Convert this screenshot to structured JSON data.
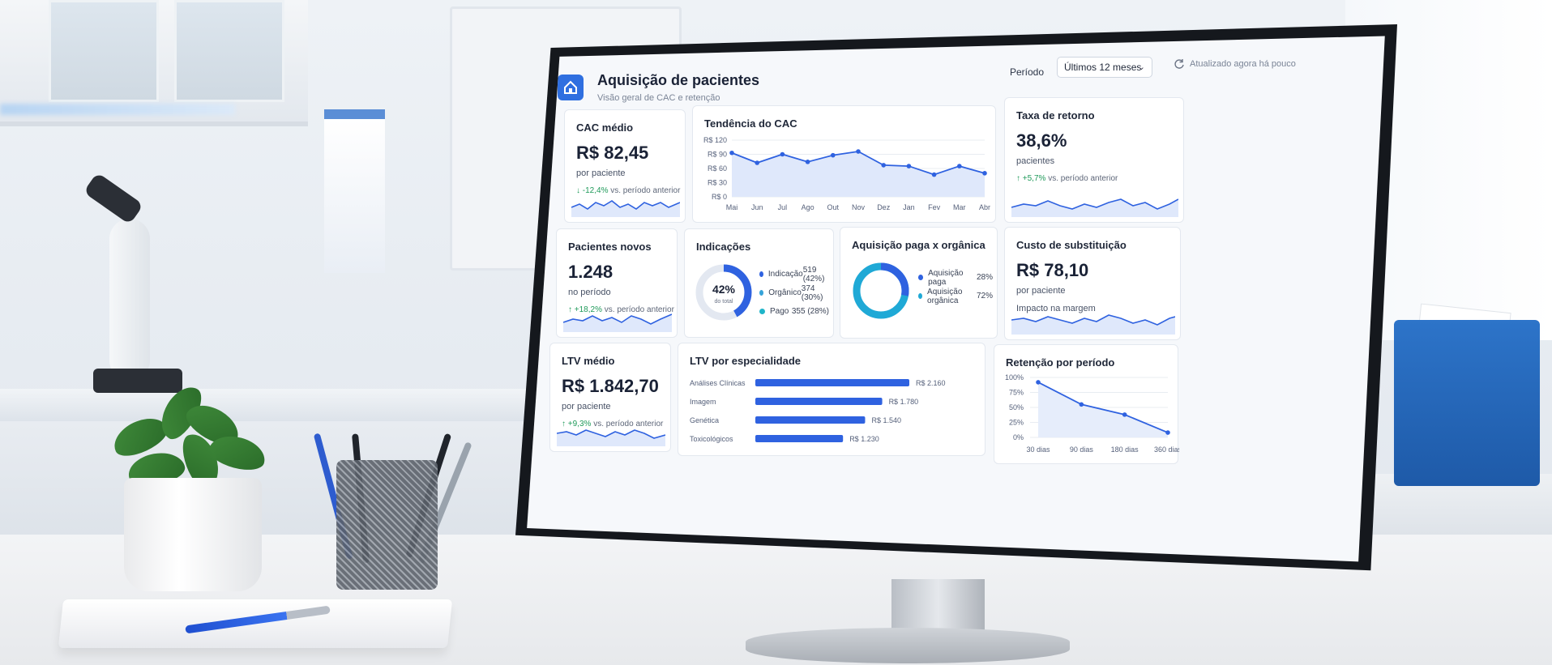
{
  "header": {
    "title": "Aquisição de pacientes",
    "subtitle": "Visão geral de CAC e retenção",
    "period_label": "Período",
    "period_value": "Últimos 12 meses",
    "updated": "Atualizado agora há pouco"
  },
  "cards": {
    "cac": {
      "title": "CAC médio",
      "value": "R$ 82,45",
      "unit": "por paciente",
      "delta": "-12,4%",
      "delta_suffix": "vs. período anterior"
    },
    "return_rate": {
      "title": "Taxa de retorno",
      "value": "38,6%",
      "unit": "pacientes",
      "delta": "+5,7%",
      "delta_suffix": "vs. período anterior"
    },
    "new_patients": {
      "title": "Pacientes novos",
      "value": "1.248",
      "unit": "no período",
      "delta": "+18,2%",
      "delta_suffix": "vs. período anterior"
    },
    "replacement": {
      "title": "Custo de substituição",
      "value": "R$ 78,10",
      "unit": "por paciente",
      "note": "Impacto na margem"
    },
    "ltv": {
      "title": "LTV médio",
      "value": "R$ 1.842,70",
      "unit": "por paciente",
      "delta": "+9,3%",
      "delta_suffix": "vs. período anterior"
    },
    "referrals": {
      "title": "Indicações",
      "center_value": "42%",
      "center_label": "do total",
      "items": [
        {
          "label": "Indicação",
          "value": "519 (42%)",
          "color": "#2f62e0"
        },
        {
          "label": "Orgânico",
          "value": "374 (30%)",
          "color": "#36a3d9"
        },
        {
          "label": "Pago",
          "value": "355 (28%)",
          "color": "#1fb5c9"
        }
      ]
    },
    "paid_organic": {
      "title": "Aquisição paga x orgânica",
      "items": [
        {
          "label": "Aquisição paga",
          "value": "28%",
          "color": "#2f62e0"
        },
        {
          "label": "Aquisição orgânica",
          "value": "72%",
          "color": "#1fa9d6"
        }
      ]
    }
  },
  "chart_data": [
    {
      "type": "line",
      "title": "Tendência do CAC",
      "categories": [
        "Mai",
        "Jun",
        "Jul",
        "Ago",
        "Out",
        "Nov",
        "Dez",
        "Jan",
        "Fev",
        "Mar",
        "Abr"
      ],
      "values": [
        93,
        72,
        90,
        74,
        88,
        96,
        67,
        65,
        47,
        65,
        50
      ],
      "yticks": [
        "R$ 120",
        "R$ 90",
        "R$ 60",
        "R$ 30",
        "R$ 0"
      ],
      "ylim": [
        0,
        120
      ]
    },
    {
      "type": "bar",
      "title": "LTV por especialidade",
      "categories": [
        "Análises Clínicas",
        "Imagem",
        "Genética",
        "Toxicológicos"
      ],
      "values": [
        2160,
        1780,
        1540,
        1230
      ],
      "labels": [
        "R$ 2.160",
        "R$ 1.780",
        "R$ 1.540",
        "R$ 1.230"
      ]
    },
    {
      "type": "line",
      "title": "Retenção por período",
      "categories": [
        "30 dias",
        "90 dias",
        "180 dias",
        "360 dias"
      ],
      "values": [
        92,
        55,
        38,
        8
      ],
      "yticks": [
        "100%",
        "75%",
        "50%",
        "25%",
        "0%"
      ],
      "ylim": [
        0,
        100
      ]
    }
  ]
}
